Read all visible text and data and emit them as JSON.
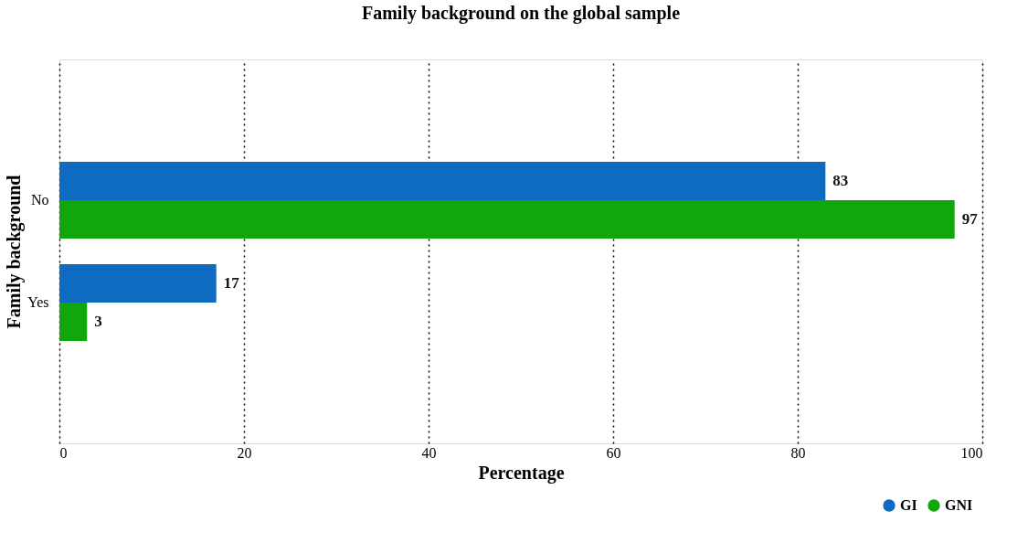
{
  "chart_data": {
    "type": "bar",
    "orientation": "horizontal",
    "title": "Family background on the global sample",
    "xlabel": "Percentage",
    "ylabel": "Family background",
    "categories": [
      "No",
      "Yes"
    ],
    "series": [
      {
        "name": "GI",
        "color": "#0f6bbf",
        "values": [
          83,
          17
        ]
      },
      {
        "name": "GNI",
        "color": "#12a60d",
        "values": [
          97,
          3
        ]
      }
    ],
    "xlim": [
      0,
      100
    ],
    "xticks": [
      0,
      20,
      40,
      60,
      80,
      100
    ],
    "grid": "x",
    "legend": "bottom right",
    "data_labels": true
  }
}
